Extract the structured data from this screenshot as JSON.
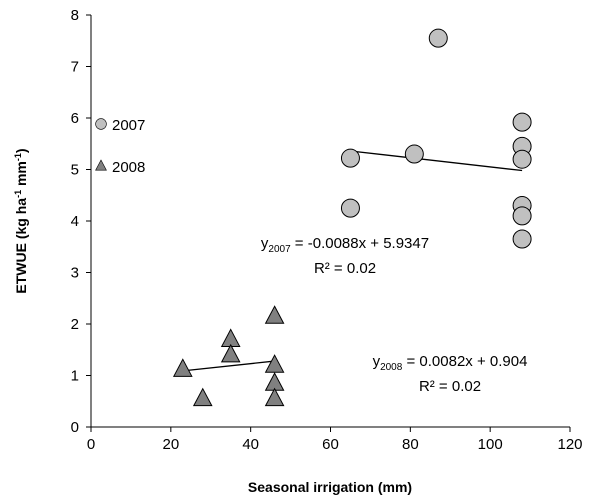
{
  "chart_data": {
    "type": "scatter",
    "x_label": "Seasonal irrigation (mm)",
    "y_label_parts": [
      "ETWUE (kg ha",
      "-1",
      " mm",
      "-1",
      ")"
    ],
    "xlim": [
      0,
      120
    ],
    "xticks": [
      0,
      20,
      40,
      60,
      80,
      100,
      120
    ],
    "ylim": [
      0,
      8
    ],
    "yticks": [
      0,
      1,
      2,
      3,
      4,
      5,
      6,
      7,
      8
    ],
    "grid": false,
    "legend": "upper left",
    "series": [
      {
        "name": "2007",
        "marker": "circle",
        "color": "#c0c0c0",
        "x": [
          65,
          65,
          81,
          87,
          108,
          108,
          108,
          108,
          108,
          108
        ],
        "values": [
          5.22,
          4.25,
          5.3,
          7.55,
          5.92,
          5.45,
          5.2,
          4.3,
          4.1,
          3.65
        ]
      },
      {
        "name": "2008",
        "marker": "triangle",
        "color": "#808080",
        "x": [
          23,
          28,
          35,
          35,
          46,
          46,
          46,
          46
        ],
        "values": [
          1.12,
          0.55,
          1.7,
          1.4,
          2.15,
          1.2,
          0.85,
          0.55
        ]
      }
    ],
    "trendlines": [
      {
        "x": [
          65,
          108
        ],
        "values": [
          5.36,
          4.98
        ]
      },
      {
        "x": [
          23,
          46
        ],
        "values": [
          1.09,
          1.28
        ]
      }
    ],
    "annotations": [
      {
        "parts": [
          "y",
          "2007",
          " = -0.0088x + 5.9347"
        ],
        "r2": "R² = 0.02"
      },
      {
        "parts": [
          "y",
          "2008",
          " = 0.0082x + 0.904"
        ],
        "r2": "R² = 0.02"
      }
    ]
  }
}
